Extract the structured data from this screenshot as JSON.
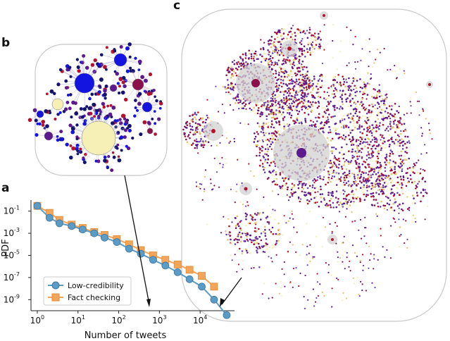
{
  "panel_labels": {
    "a": "a",
    "b": "b",
    "c": "c"
  },
  "colors": {
    "low_cred": "#5b9cc7",
    "low_cred_edge": "#3d76a3",
    "fact_check": "#f4a55a",
    "fact_check_edge": "#e2892f",
    "node_blue": "#1414e0",
    "node_navy": "#141470",
    "node_purple": "#5c1a8e",
    "node_maroon": "#8a0f4a",
    "node_red": "#b3122e",
    "node_yellow": "#f6f0b6",
    "hub_gray": "#d2d2d2"
  },
  "chart_data": {
    "type": "line",
    "xscale": "log",
    "yscale": "log",
    "xlabel": "Number of tweets",
    "ylabel": "PDF",
    "xlim": [
      0.7,
      70000
    ],
    "ylim": [
      1e-10,
      1
    ],
    "xticks": [
      {
        "value": 1,
        "base": "10",
        "exp": "0"
      },
      {
        "value": 10,
        "base": "10",
        "exp": "1"
      },
      {
        "value": 100,
        "base": "10",
        "exp": "2"
      },
      {
        "value": 1000,
        "base": "10",
        "exp": "3"
      },
      {
        "value": 10000,
        "base": "10",
        "exp": "4"
      }
    ],
    "yticks": [
      {
        "value": 0.1,
        "base": "10",
        "exp": "-1"
      },
      {
        "value": 0.001,
        "base": "10",
        "exp": "-3"
      },
      {
        "value": 1e-05,
        "base": "10",
        "exp": "-5"
      },
      {
        "value": 1e-07,
        "base": "10",
        "exp": "-7"
      },
      {
        "value": 1e-09,
        "base": "10",
        "exp": "-9"
      }
    ],
    "legend_position": "lower-left",
    "series": [
      {
        "name": "Low-credibility",
        "marker": "circle",
        "x": [
          1,
          2,
          3.5,
          7,
          13,
          25,
          45,
          90,
          180,
          350,
          700,
          1400,
          2800,
          5500,
          11000,
          22000,
          45000
        ],
        "y": [
          0.3,
          0.025,
          0.008,
          0.0045,
          0.0022,
          0.001,
          0.0004,
          0.00016,
          4e-05,
          1.4e-05,
          4e-06,
          1.2e-06,
          3e-07,
          7e-08,
          1.5e-08,
          1e-09,
          4e-11
        ]
      },
      {
        "name": "Fact checking",
        "marker": "square",
        "x": [
          1,
          2,
          3.5,
          7,
          13,
          25,
          45,
          90,
          180,
          350,
          700,
          1400,
          2800,
          5500,
          11000,
          22000
        ],
        "y": [
          0.3,
          0.07,
          0.016,
          0.006,
          0.003,
          0.0013,
          0.0007,
          0.0003,
          0.0001,
          3e-05,
          1e-05,
          4e-06,
          1.5e-06,
          5e-07,
          1.4e-07,
          1.5e-08
        ]
      }
    ]
  }
}
